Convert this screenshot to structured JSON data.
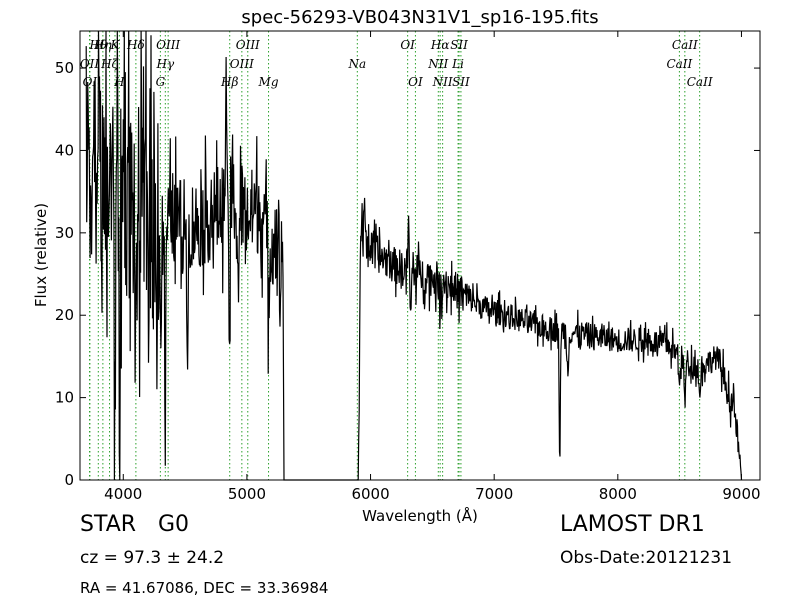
{
  "chart_data": {
    "type": "line",
    "title": "spec-56293-VB043N31V1_sp16-195.fits",
    "xlabel": "Wavelength (Å)",
    "ylabel": "Flux (relative)",
    "xlim": [
      3650,
      9150
    ],
    "ylim": [
      0,
      54.5
    ],
    "xticks": [
      4000,
      5000,
      6000,
      7000,
      8000,
      9000
    ],
    "yticks": [
      0,
      10,
      20,
      30,
      40,
      50
    ],
    "grid": false,
    "line_color": "#000000",
    "line_marker_color": "#2ca02c",
    "spectrum_anchors": [
      [
        3700,
        35
      ],
      [
        3750,
        40
      ],
      [
        3800,
        38
      ],
      [
        3850,
        34
      ],
      [
        3900,
        36
      ],
      [
        3950,
        34
      ],
      [
        4000,
        35
      ],
      [
        4100,
        33
      ],
      [
        4200,
        32
      ],
      [
        4300,
        30
      ],
      [
        4400,
        32
      ],
      [
        4500,
        31
      ],
      [
        4600,
        31
      ],
      [
        4700,
        32
      ],
      [
        4800,
        33
      ],
      [
        4900,
        34
      ],
      [
        5000,
        32
      ],
      [
        5100,
        33
      ],
      [
        5200,
        29
      ],
      [
        5280,
        31
      ],
      [
        5300,
        0
      ],
      [
        5900,
        0
      ],
      [
        5920,
        30
      ],
      [
        6000,
        28
      ],
      [
        6100,
        27
      ],
      [
        6200,
        26
      ],
      [
        6300,
        25.5
      ],
      [
        6400,
        25
      ],
      [
        6500,
        24.5
      ],
      [
        6600,
        24
      ],
      [
        6700,
        23
      ],
      [
        6800,
        22
      ],
      [
        6900,
        21
      ],
      [
        7000,
        20.5
      ],
      [
        7200,
        19.5
      ],
      [
        7400,
        18.5
      ],
      [
        7600,
        18
      ],
      [
        7800,
        17.5
      ],
      [
        8000,
        17
      ],
      [
        8200,
        17
      ],
      [
        8400,
        16.5
      ],
      [
        8500,
        15
      ],
      [
        8600,
        14
      ],
      [
        8700,
        14
      ],
      [
        8800,
        15
      ],
      [
        8850,
        13
      ],
      [
        8900,
        10
      ],
      [
        8950,
        8
      ],
      [
        9000,
        0
      ]
    ],
    "spectrum_features": [
      [
        3930,
        -30
      ],
      [
        3970,
        -30
      ],
      [
        3950,
        18
      ],
      [
        4010,
        14
      ],
      [
        4101,
        -25
      ],
      [
        4340,
        -25
      ],
      [
        4304,
        -14
      ],
      [
        4520,
        -12
      ],
      [
        4830,
        14
      ],
      [
        4861,
        -18
      ],
      [
        4930,
        -10
      ],
      [
        5175,
        -8
      ],
      [
        5270,
        -10
      ],
      [
        5290,
        10
      ],
      [
        5955,
        4
      ],
      [
        6310,
        8
      ],
      [
        6320,
        -8
      ],
      [
        6563,
        -4
      ],
      [
        7530,
        -18
      ],
      [
        7595,
        -5
      ],
      [
        8495,
        -3
      ],
      [
        8542,
        -5
      ],
      [
        8662,
        -4
      ]
    ],
    "line_markers": [
      {
        "wavelength": 3727,
        "label": "OII",
        "row": 1
      },
      {
        "wavelength": 3730,
        "label": "OI",
        "row": 2
      },
      {
        "wavelength": 3798,
        "label": "Hθ",
        "row": 0
      },
      {
        "wavelength": 3835,
        "label": "Hη",
        "row": 0
      },
      {
        "wavelength": 3889,
        "label": "Hζ",
        "row": 1
      },
      {
        "wavelength": 3933,
        "label": "K",
        "row": 0
      },
      {
        "wavelength": 3968,
        "label": "H",
        "row": 2
      },
      {
        "wavelength": 4102,
        "label": "Hδ",
        "row": 0
      },
      {
        "wavelength": 4300,
        "label": "G",
        "row": 2
      },
      {
        "wavelength": 4340,
        "label": "Hγ",
        "row": 1
      },
      {
        "wavelength": 4363,
        "label": "OIII",
        "row": 0
      },
      {
        "wavelength": 4861,
        "label": "Hβ",
        "row": 2
      },
      {
        "wavelength": 4959,
        "label": "OIII",
        "row": 1
      },
      {
        "wavelength": 5007,
        "label": "OIII",
        "row": 0
      },
      {
        "wavelength": 5175,
        "label": "Mg",
        "row": 2
      },
      {
        "wavelength": 5893,
        "label": "Na",
        "row": 1
      },
      {
        "wavelength": 6300,
        "label": "OI",
        "row": 0
      },
      {
        "wavelength": 6363,
        "label": "OI",
        "row": 2
      },
      {
        "wavelength": 6548,
        "label": "NII",
        "row": 1
      },
      {
        "wavelength": 6563,
        "label": "Hα",
        "row": 0
      },
      {
        "wavelength": 6583,
        "label": "NII",
        "row": 2
      },
      {
        "wavelength": 6708,
        "label": "Li",
        "row": 1
      },
      {
        "wavelength": 6716,
        "label": "SII",
        "row": 0
      },
      {
        "wavelength": 6731,
        "label": "SII",
        "row": 2
      },
      {
        "wavelength": 8498,
        "label": "CaII",
        "row": 1
      },
      {
        "wavelength": 8542,
        "label": "CaII",
        "row": 0
      },
      {
        "wavelength": 8662,
        "label": "CaII",
        "row": 2
      }
    ]
  },
  "footer": {
    "object_class": "STAR",
    "object_subclass": "G0",
    "survey": "LAMOST DR1",
    "redshift": "cz = 97.3 ± 24.2",
    "obs_date": "Obs-Date:20121231",
    "coordinates": "RA = 41.67086, DEC = 33.36984"
  }
}
